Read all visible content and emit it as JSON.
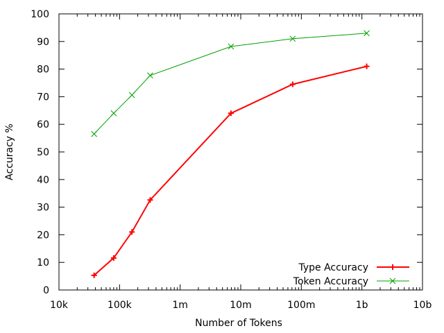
{
  "chart_data": {
    "type": "line",
    "xlabel": "Number of Tokens",
    "ylabel": "Accuracy %",
    "xscale": "log",
    "xlim": [
      10000,
      10000000000
    ],
    "ylim": [
      0,
      100
    ],
    "xticks": [
      {
        "value": 10000,
        "label": "10k"
      },
      {
        "value": 100000,
        "label": "100k"
      },
      {
        "value": 1000000,
        "label": "1m"
      },
      {
        "value": 10000000,
        "label": "10m"
      },
      {
        "value": 100000000,
        "label": "100m"
      },
      {
        "value": 1000000000,
        "label": "1b"
      },
      {
        "value": 10000000000,
        "label": "10b"
      }
    ],
    "yticks": [
      0,
      10,
      20,
      30,
      40,
      50,
      60,
      70,
      80,
      90,
      100
    ],
    "grid": false,
    "legend_position": "bottom-right",
    "series": [
      {
        "name": "Type Accuracy",
        "color": "#ff0000",
        "marker": "plus",
        "points": [
          {
            "x": 38000,
            "y": 5.3
          },
          {
            "x": 80000,
            "y": 11.6
          },
          {
            "x": 160000,
            "y": 21.0
          },
          {
            "x": 320000,
            "y": 32.6
          },
          {
            "x": 6900000,
            "y": 64.0
          },
          {
            "x": 72000000,
            "y": 74.5
          },
          {
            "x": 1200000000,
            "y": 81.0
          }
        ]
      },
      {
        "name": "Token Accuracy",
        "color": "#00a000",
        "marker": "cross",
        "points": [
          {
            "x": 38000,
            "y": 56.5
          },
          {
            "x": 80000,
            "y": 64.0
          },
          {
            "x": 160000,
            "y": 70.6
          },
          {
            "x": 320000,
            "y": 77.7
          },
          {
            "x": 6900000,
            "y": 88.2
          },
          {
            "x": 72000000,
            "y": 91.0
          },
          {
            "x": 1200000000,
            "y": 93.0
          }
        ]
      }
    ]
  }
}
